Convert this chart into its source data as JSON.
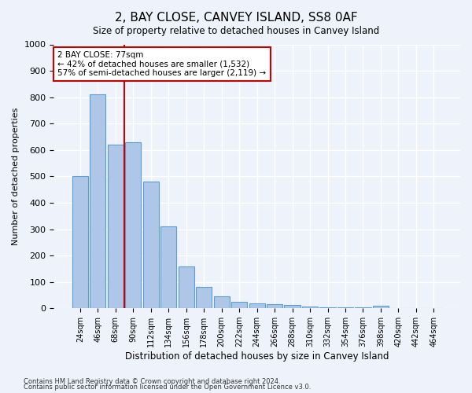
{
  "title": "2, BAY CLOSE, CANVEY ISLAND, SS8 0AF",
  "subtitle": "Size of property relative to detached houses in Canvey Island",
  "xlabel": "Distribution of detached houses by size in Canvey Island",
  "ylabel": "Number of detached properties",
  "categories": [
    "24sqm",
    "46sqm",
    "68sqm",
    "90sqm",
    "112sqm",
    "134sqm",
    "156sqm",
    "178sqm",
    "200sqm",
    "222sqm",
    "244sqm",
    "266sqm",
    "288sqm",
    "310sqm",
    "332sqm",
    "354sqm",
    "376sqm",
    "398sqm",
    "420sqm",
    "442sqm",
    "464sqm"
  ],
  "values": [
    500,
    810,
    620,
    630,
    480,
    310,
    160,
    80,
    45,
    25,
    20,
    15,
    12,
    8,
    5,
    5,
    5,
    10,
    0,
    0,
    0
  ],
  "bar_color": "#aec6e8",
  "bar_edge_color": "#5a9fd4",
  "vline_color": "#cc0000",
  "annotation_text": "2 BAY CLOSE: 77sqm\n← 42% of detached houses are smaller (1,532)\n57% of semi-detached houses are larger (2,119) →",
  "annotation_box_color": "#ffffff",
  "annotation_box_edge": "#cc0000",
  "ylim": [
    0,
    1000
  ],
  "yticks": [
    0,
    100,
    200,
    300,
    400,
    500,
    600,
    700,
    800,
    900,
    1000
  ],
  "footer1": "Contains HM Land Registry data © Crown copyright and database right 2024.",
  "footer2": "Contains public sector information licensed under the Open Government Licence v3.0.",
  "bg_color": "#eef2fb",
  "plot_bg_color": "#eef2fb",
  "grid_color": "#ffffff"
}
